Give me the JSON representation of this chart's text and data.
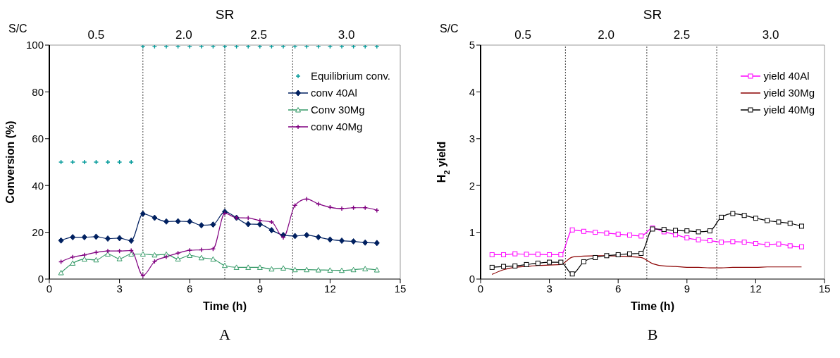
{
  "chart_data": [
    {
      "type": "line",
      "title": "A",
      "x2label": "SR",
      "xlabel": "Time (h)",
      "ylabel": "Conversion (%)",
      "xlim": [
        0,
        15
      ],
      "xticks": [
        0,
        3,
        6,
        9,
        12,
        15
      ],
      "ylim": [
        0,
        100
      ],
      "yticks": [
        0,
        20,
        40,
        60,
        80,
        100
      ],
      "legend": "top right",
      "annotations": [
        "S/C",
        "0.5",
        "2.0",
        "2.5",
        "3.0"
      ],
      "ref_lines": [
        {
          "axis": "x",
          "value": 4,
          "color": "#404040",
          "line_style": "dotted"
        },
        {
          "axis": "x",
          "value": 7.5,
          "color": "#404040",
          "line_style": "dotted"
        },
        {
          "axis": "x",
          "value": 10.4,
          "color": "#404040",
          "line_style": "dotted"
        }
      ],
      "x": [
        0.5,
        1,
        1.5,
        2,
        2.5,
        3,
        3.5,
        4,
        4.5,
        5,
        5.5,
        6,
        6.5,
        7,
        7.5,
        8,
        8.5,
        9,
        9.5,
        10,
        10.5,
        11,
        11.5,
        12,
        12.5,
        13,
        13.5,
        14
      ],
      "series": [
        {
          "name": "Equilibrium conv.",
          "type": "scatter",
          "marker": "cross",
          "color": "#009999",
          "values": [
            50,
            50,
            50,
            50,
            50,
            50,
            50,
            99.5,
            99.5,
            99.5,
            99.5,
            99.5,
            99.5,
            99.5,
            99.5,
            99.5,
            99.5,
            99.5,
            99.5,
            99.5,
            99.5,
            99.5,
            99.5,
            99.5,
            99.5,
            99.5,
            99.5,
            99.5
          ]
        },
        {
          "name": "conv 40Al",
          "marker": "diamond",
          "color": "#002060",
          "values": [
            16.5,
            17.9,
            17.9,
            18.1,
            17.3,
            17.5,
            16.4,
            27.9,
            26.2,
            24.6,
            24.7,
            24.6,
            23.0,
            23.3,
            28.8,
            26.2,
            23.5,
            23.4,
            20.9,
            18.8,
            18.4,
            18.8,
            17.9,
            16.9,
            16.4,
            16.1,
            15.6,
            15.4
          ]
        },
        {
          "name": "Conv 30Mg",
          "marker": "triangle",
          "color": "#339966",
          "values": [
            2.7,
            6.8,
            8.5,
            8.2,
            10.7,
            8.7,
            10.7,
            10.7,
            10.3,
            10.6,
            8.6,
            10.1,
            9.1,
            8.5,
            5.8,
            5.0,
            5.0,
            5.0,
            4.3,
            4.7,
            4.0,
            4.0,
            3.9,
            3.8,
            3.7,
            4.0,
            4.4,
            3.9
          ]
        },
        {
          "name": "conv 40Mg",
          "marker": "cross",
          "color": "#800080",
          "values": [
            7.4,
            9.4,
            10.3,
            11.4,
            12.0,
            12.0,
            12.2,
            1.5,
            7.5,
            9.5,
            11.1,
            12.3,
            12.5,
            12.9,
            28.1,
            26.2,
            26.1,
            25.0,
            24.4,
            17.8,
            31.5,
            34.2,
            32.1,
            30.7,
            30.1,
            30.5,
            30.5,
            29.4
          ]
        }
      ]
    },
    {
      "type": "line",
      "title": "B",
      "x2label": "SR",
      "xlabel": "Time (h)",
      "ylabel": "H$_{2}$ yield",
      "xlim": [
        0,
        15
      ],
      "xticks": [
        0,
        3,
        6,
        9,
        12,
        15
      ],
      "ylim": [
        0,
        5
      ],
      "yticks": [
        0,
        1,
        2,
        3,
        4,
        5
      ],
      "legend": "top right",
      "annotations": [
        "S/C",
        "0.5",
        "2.0",
        "2.5",
        "3.0"
      ],
      "ref_lines": [
        {
          "axis": "x",
          "value": 3.7,
          "color": "#404040",
          "line_style": "dotted"
        },
        {
          "axis": "x",
          "value": 7.25,
          "color": "#404040",
          "line_style": "dotted"
        },
        {
          "axis": "x",
          "value": 10.3,
          "color": "#404040",
          "line_style": "dotted"
        }
      ],
      "x": [
        0.5,
        1,
        1.5,
        2,
        2.5,
        3,
        3.5,
        4,
        4.5,
        5,
        5.5,
        6,
        6.5,
        7,
        7.5,
        8,
        8.5,
        9,
        9.5,
        10,
        10.5,
        11,
        11.5,
        12,
        12.5,
        13,
        13.5,
        14
      ],
      "series": [
        {
          "name": "yield 40Al",
          "marker": "square",
          "color": "#ff00ff",
          "values": [
            0.52,
            0.52,
            0.54,
            0.53,
            0.53,
            0.52,
            0.52,
            1.05,
            1.02,
            1.0,
            0.98,
            0.96,
            0.94,
            0.92,
            1.09,
            1.01,
            0.95,
            0.88,
            0.84,
            0.82,
            0.79,
            0.8,
            0.79,
            0.76,
            0.74,
            0.75,
            0.71,
            0.69
          ]
        },
        {
          "name": "yield 30Mg",
          "marker": "none",
          "color": "#8b0000",
          "values": [
            0.1,
            0.2,
            0.25,
            0.27,
            0.29,
            0.3,
            0.31,
            0.47,
            0.49,
            0.5,
            0.5,
            0.49,
            0.48,
            0.46,
            0.33,
            0.28,
            0.27,
            0.25,
            0.25,
            0.24,
            0.24,
            0.25,
            0.25,
            0.25,
            0.26,
            0.26,
            0.26,
            0.26
          ]
        },
        {
          "name": "yield 40Mg",
          "marker": "square",
          "color": "#000000",
          "values": [
            0.25,
            0.27,
            0.28,
            0.31,
            0.34,
            0.36,
            0.36,
            0.11,
            0.37,
            0.46,
            0.5,
            0.52,
            0.54,
            0.55,
            1.07,
            1.06,
            1.04,
            1.03,
            1.01,
            1.03,
            1.32,
            1.4,
            1.36,
            1.3,
            1.25,
            1.22,
            1.19,
            1.13
          ]
        }
      ]
    }
  ]
}
